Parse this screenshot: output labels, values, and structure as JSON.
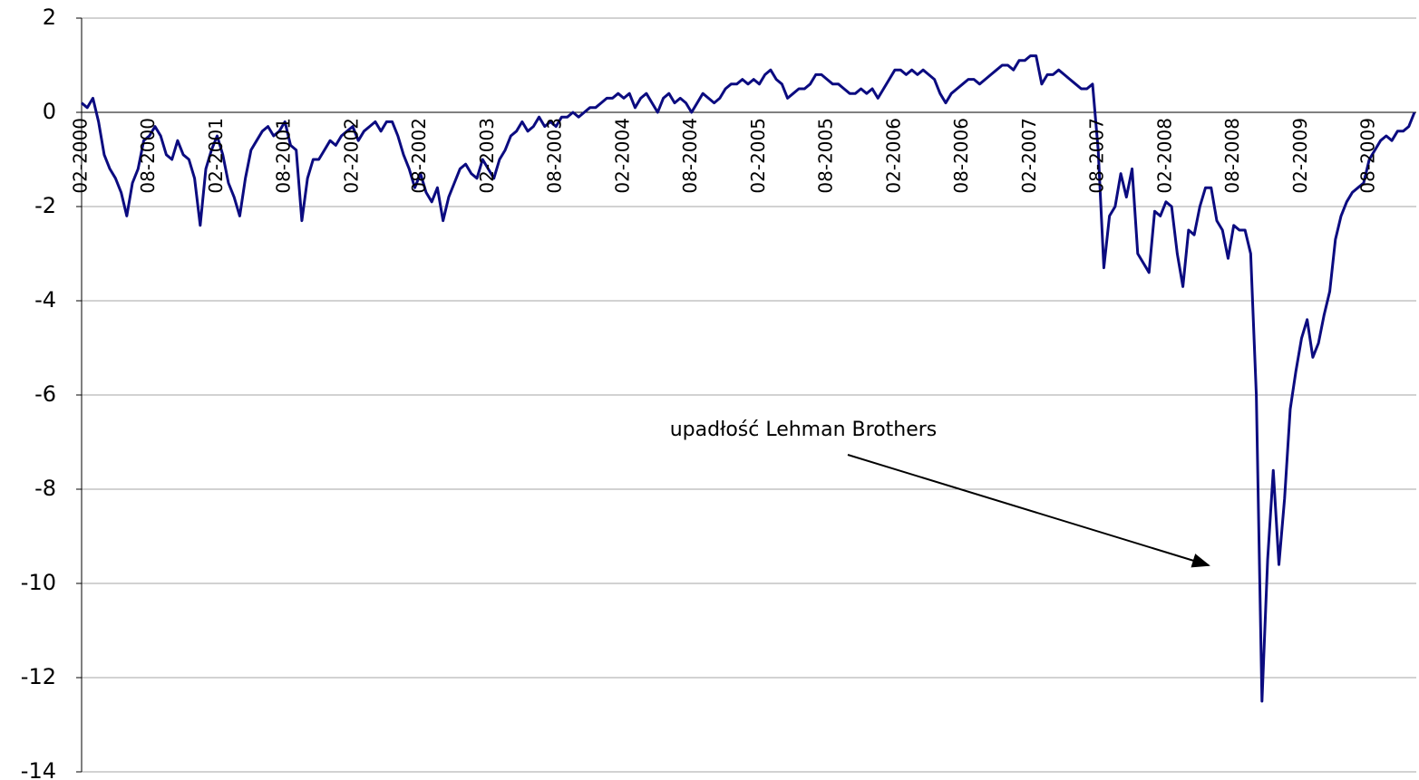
{
  "chart_data": {
    "type": "line",
    "annotation": "upadłość Lehman Brothers",
    "color": "#0b0b80",
    "grid": true,
    "ylim": [
      -14,
      2
    ],
    "yticks": [
      -14,
      -12,
      -10,
      -8,
      -6,
      -4,
      -2,
      0,
      2
    ],
    "categories": [
      "02-2000",
      null,
      null,
      null,
      null,
      null,
      null,
      null,
      null,
      null,
      null,
      null,
      "08-2000",
      null,
      null,
      null,
      null,
      null,
      null,
      null,
      null,
      null,
      null,
      null,
      "02-2001",
      null,
      null,
      null,
      null,
      null,
      null,
      null,
      null,
      null,
      null,
      null,
      "08-2001",
      null,
      null,
      null,
      null,
      null,
      null,
      null,
      null,
      null,
      null,
      null,
      "02-2002",
      null,
      null,
      null,
      null,
      null,
      null,
      null,
      null,
      null,
      null,
      null,
      "08-2002",
      null,
      null,
      null,
      null,
      null,
      null,
      null,
      null,
      null,
      null,
      null,
      "02-2003",
      null,
      null,
      null,
      null,
      null,
      null,
      null,
      null,
      null,
      null,
      null,
      "08-2003",
      null,
      null,
      null,
      null,
      null,
      null,
      null,
      null,
      null,
      null,
      null,
      "02-2004",
      null,
      null,
      null,
      null,
      null,
      null,
      null,
      null,
      null,
      null,
      null,
      "08-2004",
      null,
      null,
      null,
      null,
      null,
      null,
      null,
      null,
      null,
      null,
      null,
      "02-2005",
      null,
      null,
      null,
      null,
      null,
      null,
      null,
      null,
      null,
      null,
      null,
      "08-2005",
      null,
      null,
      null,
      null,
      null,
      null,
      null,
      null,
      null,
      null,
      null,
      "02-2006",
      null,
      null,
      null,
      null,
      null,
      null,
      null,
      null,
      null,
      null,
      null,
      "08-2006",
      null,
      null,
      null,
      null,
      null,
      null,
      null,
      null,
      null,
      null,
      null,
      "02-2007",
      null,
      null,
      null,
      null,
      null,
      null,
      null,
      null,
      null,
      null,
      null,
      "08-2007",
      null,
      null,
      null,
      null,
      null,
      null,
      null,
      null,
      null,
      null,
      null,
      "02-2008",
      null,
      null,
      null,
      null,
      null,
      null,
      null,
      null,
      null,
      null,
      null,
      "08-2008",
      null,
      null,
      null,
      null,
      null,
      null,
      null,
      null,
      null,
      null,
      null,
      "02-2009",
      null,
      null,
      null,
      null,
      null,
      null,
      null,
      null,
      null,
      null,
      null,
      "08-2009",
      null,
      null,
      null,
      null,
      null,
      null,
      null,
      null
    ],
    "values": [
      0.2,
      0.1,
      0.3,
      -0.2,
      -0.9,
      -1.2,
      -1.4,
      -1.7,
      -2.2,
      -1.5,
      -1.2,
      -0.6,
      -0.5,
      -0.3,
      -0.5,
      -0.9,
      -1.0,
      -0.6,
      -0.9,
      -1.0,
      -1.4,
      -2.4,
      -1.2,
      -0.8,
      -0.5,
      -0.9,
      -1.5,
      -1.8,
      -2.2,
      -1.4,
      -0.8,
      -0.6,
      -0.4,
      -0.3,
      -0.5,
      -0.4,
      -0.2,
      -0.7,
      -0.8,
      -2.3,
      -1.4,
      -1.0,
      -1.0,
      -0.8,
      -0.6,
      -0.7,
      -0.5,
      -0.4,
      -0.3,
      -0.6,
      -0.4,
      -0.3,
      -0.2,
      -0.4,
      -0.2,
      -0.2,
      -0.5,
      -0.9,
      -1.2,
      -1.6,
      -1.3,
      -1.7,
      -1.9,
      -1.6,
      -2.3,
      -1.8,
      -1.5,
      -1.2,
      -1.1,
      -1.3,
      -1.4,
      -1.0,
      -1.2,
      -1.4,
      -1.0,
      -0.8,
      -0.5,
      -0.4,
      -0.2,
      -0.4,
      -0.3,
      -0.1,
      -0.3,
      -0.2,
      -0.3,
      -0.1,
      -0.1,
      0.0,
      -0.1,
      0.0,
      0.1,
      0.1,
      0.2,
      0.3,
      0.3,
      0.4,
      0.3,
      0.4,
      0.1,
      0.3,
      0.4,
      0.2,
      0.0,
      0.3,
      0.4,
      0.2,
      0.3,
      0.2,
      0.0,
      0.2,
      0.4,
      0.3,
      0.2,
      0.3,
      0.5,
      0.6,
      0.6,
      0.7,
      0.6,
      0.7,
      0.6,
      0.8,
      0.9,
      0.7,
      0.6,
      0.3,
      0.4,
      0.5,
      0.5,
      0.6,
      0.8,
      0.8,
      0.7,
      0.6,
      0.6,
      0.5,
      0.4,
      0.4,
      0.5,
      0.4,
      0.5,
      0.3,
      0.5,
      0.7,
      0.9,
      0.9,
      0.8,
      0.9,
      0.8,
      0.9,
      0.8,
      0.7,
      0.4,
      0.2,
      0.4,
      0.5,
      0.6,
      0.7,
      0.7,
      0.6,
      0.7,
      0.8,
      0.9,
      1.0,
      1.0,
      0.9,
      1.1,
      1.1,
      1.2,
      1.2,
      0.6,
      0.8,
      0.8,
      0.9,
      0.8,
      0.7,
      0.6,
      0.5,
      0.5,
      0.6,
      -0.8,
      -3.3,
      -2.2,
      -2.0,
      -1.3,
      -1.8,
      -1.2,
      -3.0,
      -3.2,
      -3.4,
      -2.1,
      -2.2,
      -1.9,
      -2.0,
      -3.0,
      -3.7,
      -2.5,
      -2.6,
      -2.0,
      -1.6,
      -1.6,
      -2.3,
      -2.5,
      -3.1,
      -2.4,
      -2.5,
      -2.5,
      -3.0,
      -6.0,
      -12.5,
      -9.5,
      -7.6,
      -9.6,
      -8.2,
      -6.3,
      -5.5,
      -4.8,
      -4.4,
      -5.2,
      -4.9,
      -4.3,
      -3.8,
      -2.7,
      -2.2,
      -1.9,
      -1.7,
      -1.6,
      -1.5,
      -1.0,
      -0.8,
      -0.6,
      -0.5,
      -0.6,
      -0.4,
      -0.4,
      -0.3,
      0.0
    ]
  }
}
